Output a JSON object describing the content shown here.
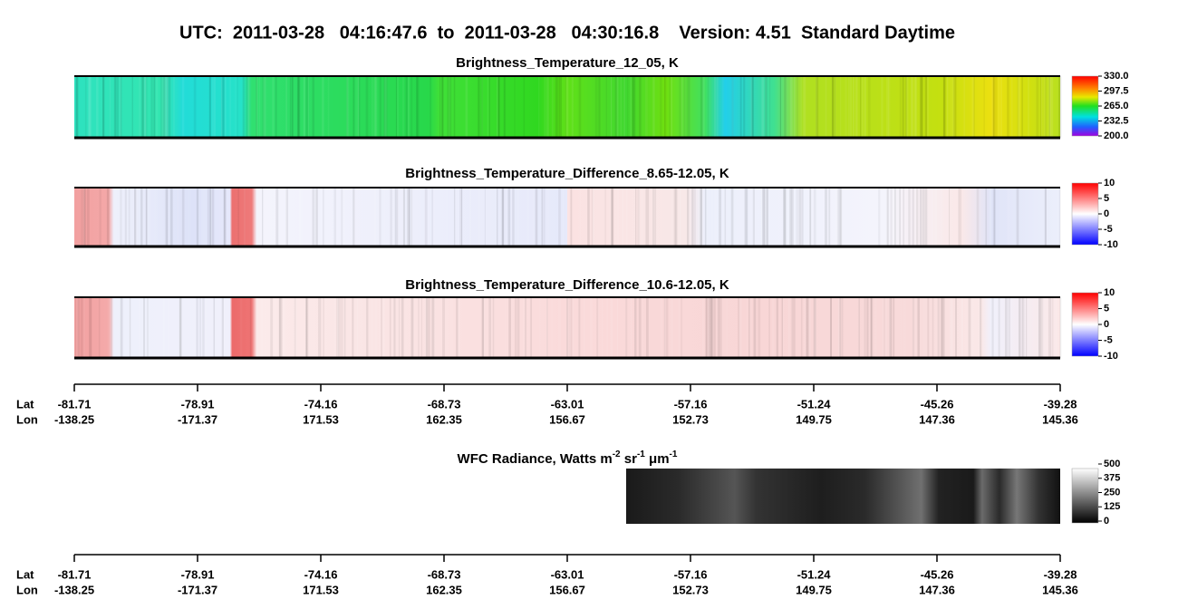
{
  "title": "UTC:  2011-03-28   04:16:47.6  to  2011-03-28   04:30:16.8    Version: 4.51  Standard Daytime",
  "panels": [
    {
      "title": "Brightness_Temperature_12_05, K",
      "colorbar": [
        "330.0",
        "297.5",
        "265.0",
        "232.5",
        "200.0"
      ]
    },
    {
      "title": "Brightness_Temperature_Difference_8.65-12.05, K",
      "colorbar": [
        "10",
        "5",
        "0",
        "-5",
        "-10"
      ]
    },
    {
      "title": "Brightness_Temperature_Difference_10.6-12.05, K",
      "colorbar": [
        "10",
        "5",
        "0",
        "-5",
        "-10"
      ]
    }
  ],
  "axes": [
    {
      "lat_label": "Lat",
      "lon_label": "Lon",
      "lat": [
        "-81.71",
        "-78.91",
        "-74.16",
        "-68.73",
        "-63.01",
        "-57.16",
        "-51.24",
        "-45.26",
        "-39.28"
      ],
      "lon": [
        "-138.25",
        "-171.37",
        "171.53",
        "162.35",
        "156.67",
        "152.73",
        "149.75",
        "147.36",
        "145.36"
      ]
    },
    {
      "lat_label": "Lat",
      "lon_label": "Lon",
      "lat": [
        "-81.71",
        "-78.91",
        "-74.16",
        "-68.73",
        "-63.01",
        "-57.16",
        "-51.24",
        "-45.26",
        "-39.28"
      ],
      "lon": [
        "-138.25",
        "-171.37",
        "171.53",
        "162.35",
        "156.67",
        "152.73",
        "149.75",
        "147.36",
        "145.36"
      ]
    }
  ],
  "wfc": {
    "title_parts": [
      "WFC Radiance, Watts m",
      "-2",
      " sr",
      "-1",
      " μm",
      "-1"
    ],
    "colorbar": [
      "500",
      "375",
      "250",
      "125",
      "0"
    ]
  }
}
